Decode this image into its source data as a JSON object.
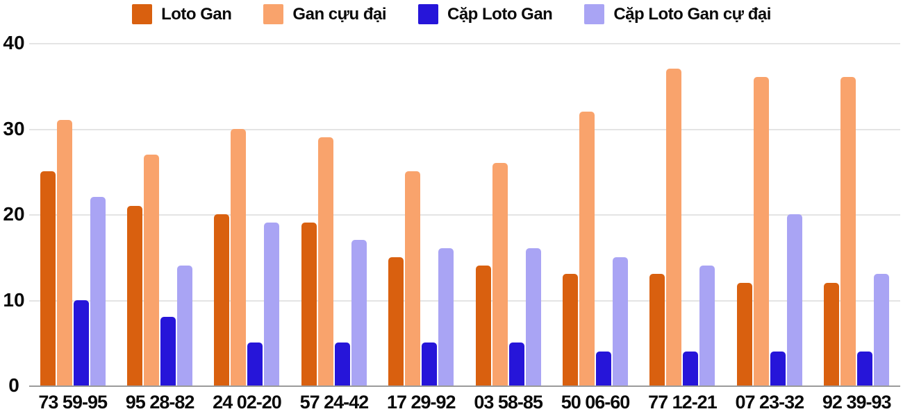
{
  "chart_data": {
    "type": "bar",
    "title": "",
    "xlabel": "",
    "ylabel": "",
    "categories": [
      "73 59-95",
      "95 28-82",
      "24 02-20",
      "57 24-42",
      "17 29-92",
      "03 58-85",
      "50 06-60",
      "77 12-21",
      "07 23-32",
      "92 39-93"
    ],
    "series": [
      {
        "name": "Loto Gan",
        "color": "#d9600f",
        "values": [
          25,
          21,
          20,
          19,
          15,
          14,
          13,
          13,
          12,
          12
        ]
      },
      {
        "name": "Gan cựu đại",
        "color": "#f9a36c",
        "values": [
          31,
          27,
          30,
          29,
          25,
          26,
          32,
          37,
          36,
          36
        ]
      },
      {
        "name": "Cặp Loto Gan",
        "color": "#2615d9",
        "values": [
          10,
          8,
          5,
          5,
          5,
          5,
          4,
          4,
          4,
          4
        ]
      },
      {
        "name": "Cặp Loto Gan cự đại",
        "color": "#a9a4f4",
        "values": [
          22,
          14,
          19,
          17,
          16,
          16,
          15,
          14,
          20,
          13
        ]
      }
    ],
    "ylim": [
      0,
      40
    ],
    "yticks": [
      0,
      10,
      20,
      30,
      40
    ],
    "grid": true,
    "legend_position": "top"
  },
  "colors": {
    "background": "#ffffff",
    "text": "#0a0a0a",
    "gridline": "#e4e4e4",
    "axis_line": "#9a9a9a"
  }
}
